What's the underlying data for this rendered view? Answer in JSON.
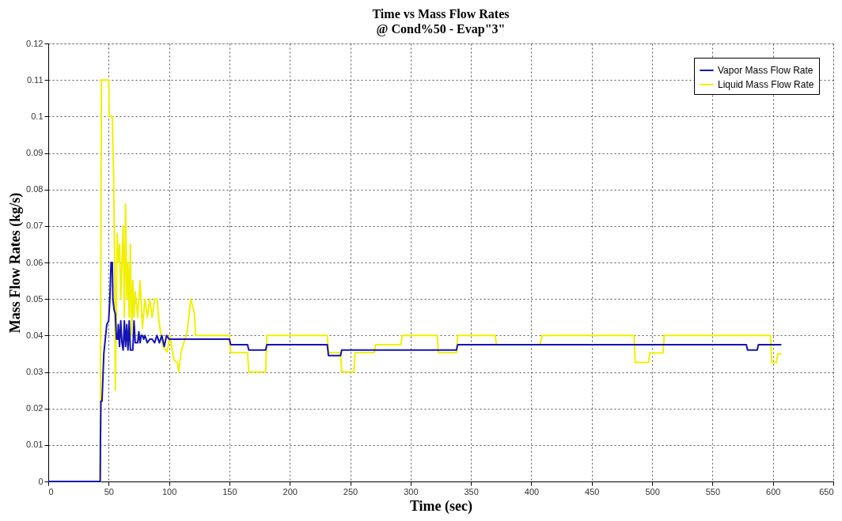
{
  "chart_data": {
    "type": "line",
    "title": "Time vs Mass Flow Rates",
    "subtitle": "@ Cond%50 - Evap\"3\"",
    "xlabel": "Time (sec)",
    "ylabel": "Mass Flow Rates (kg/s)",
    "xlim": [
      0,
      650
    ],
    "xticks": [
      0,
      50,
      100,
      150,
      200,
      250,
      300,
      350,
      400,
      450,
      500,
      550,
      600,
      650
    ],
    "ylim": [
      0,
      0.12
    ],
    "yticks": [
      0,
      0.01,
      0.02,
      0.03,
      0.04,
      0.05,
      0.06,
      0.07,
      0.08,
      0.09,
      0.1,
      0.11,
      0.12
    ],
    "grid": true,
    "legend": "top right",
    "line_style": "solid",
    "marker": "none",
    "series": [
      {
        "name": "Vapor Mass Flow Rate",
        "color": "#1414b4",
        "x": [
          0,
          43,
          43.2,
          43.6,
          44.5,
          46,
          47.5,
          48.5,
          50,
          51,
          52,
          53,
          53.5,
          54.5,
          55.5,
          56.5,
          57.5,
          58,
          59,
          60,
          61,
          62,
          63,
          64,
          65,
          66,
          67,
          68,
          70,
          71,
          72,
          74,
          75,
          76,
          77,
          78,
          79,
          80,
          82,
          84,
          86,
          88,
          90,
          92,
          94,
          96,
          98,
          100,
          150,
          151,
          165,
          166,
          180,
          181,
          231,
          232,
          242,
          243,
          338,
          339,
          578,
          579,
          587,
          588,
          607
        ],
        "values": [
          0,
          0,
          0.011,
          0.022,
          0.022,
          0.035,
          0.04,
          0.043,
          0.044,
          0.05,
          0.06,
          0.06,
          0.05,
          0.047,
          0.046,
          0.039,
          0.039,
          0.043,
          0.037,
          0.044,
          0.038,
          0.036,
          0.044,
          0.037,
          0.043,
          0.036,
          0.044,
          0.036,
          0.036,
          0.044,
          0.038,
          0.038,
          0.041,
          0.038,
          0.04,
          0.04,
          0.039,
          0.04,
          0.038,
          0.039,
          0.039,
          0.038,
          0.04,
          0.038,
          0.04,
          0.037,
          0.04,
          0.039,
          0.039,
          0.0375,
          0.0375,
          0.036,
          0.036,
          0.0375,
          0.0375,
          0.0345,
          0.0345,
          0.036,
          0.036,
          0.0375,
          0.0375,
          0.036,
          0.036,
          0.0375,
          0.0375
        ]
      },
      {
        "name": "Liquid Mass Flow Rate",
        "color": "#f0f000",
        "x": [
          0,
          43,
          44,
          50,
          50.5,
          53,
          54,
          55,
          55.5,
          56.5,
          57,
          58,
          59,
          60,
          61,
          62,
          63,
          64,
          65,
          66,
          67,
          68,
          69,
          70,
          71,
          72,
          74,
          76,
          78,
          80,
          82,
          84,
          86,
          88,
          90,
          92,
          95,
          98.5,
          100.7,
          104,
          107,
          108,
          110,
          115,
          118,
          121,
          122,
          150,
          151,
          165,
          166,
          180,
          181,
          231,
          232,
          242,
          243,
          253,
          254,
          270,
          271,
          292,
          293,
          322,
          323,
          338,
          339,
          370,
          371,
          407,
          409,
          485,
          486,
          497,
          498,
          509,
          510,
          598,
          599,
          603,
          604,
          607
        ],
        "values": [
          0,
          0,
          0.11,
          0.11,
          0.1,
          0.1,
          0.085,
          0.06,
          0.025,
          0.05,
          0.068,
          0.06,
          0.065,
          0.05,
          0.06,
          0.07,
          0.045,
          0.076,
          0.05,
          0.06,
          0.045,
          0.065,
          0.04,
          0.055,
          0.045,
          0.052,
          0.045,
          0.055,
          0.042,
          0.05,
          0.045,
          0.05,
          0.045,
          0.05,
          0.05,
          0.043,
          0.037,
          0.0355,
          0.04,
          0.0333,
          0.0326,
          0.03,
          0.0355,
          0.041,
          0.05,
          0.046,
          0.04,
          0.04,
          0.0353,
          0.0353,
          0.03,
          0.03,
          0.04,
          0.04,
          0.0353,
          0.0353,
          0.03,
          0.03,
          0.0353,
          0.0353,
          0.0375,
          0.0375,
          0.04,
          0.04,
          0.0353,
          0.0353,
          0.04,
          0.04,
          0.0375,
          0.0375,
          0.04,
          0.04,
          0.0326,
          0.0326,
          0.0352,
          0.0352,
          0.04,
          0.04,
          0.0326,
          0.0326,
          0.035,
          0.035
        ]
      }
    ]
  }
}
